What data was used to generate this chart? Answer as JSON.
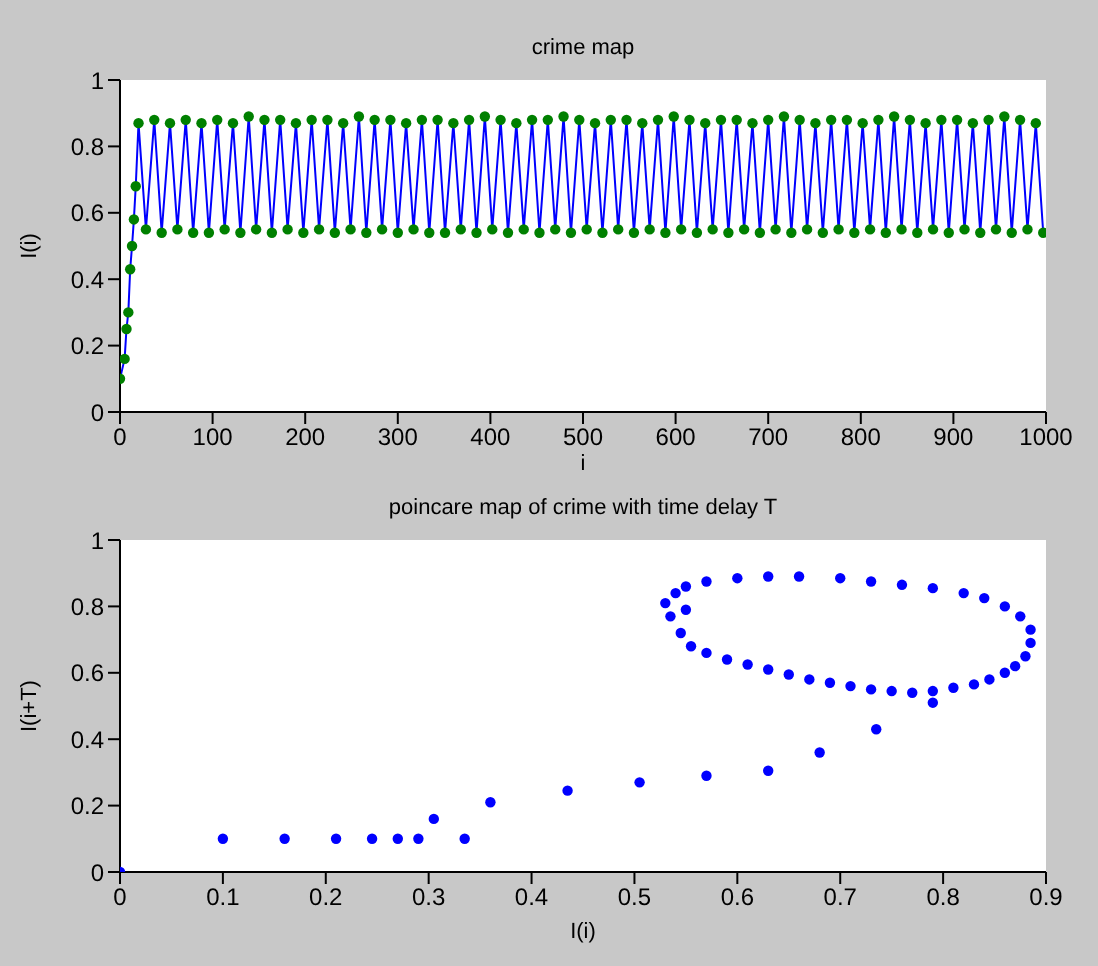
{
  "chart_data": [
    {
      "type": "line",
      "title": "crime map",
      "xlabel": "i",
      "ylabel": "I(i)",
      "xlim": [
        0,
        1000
      ],
      "xticks": [
        0,
        100,
        200,
        300,
        400,
        500,
        600,
        700,
        800,
        900,
        1000
      ],
      "ylim": [
        0,
        1
      ],
      "yticks": [
        0,
        0.2,
        0.4,
        0.6,
        0.8,
        1
      ],
      "x": [
        0,
        5,
        7,
        9,
        11,
        13,
        15,
        17,
        20,
        28,
        37,
        45,
        54,
        62,
        71,
        79,
        88,
        96,
        105,
        113,
        122,
        130,
        139,
        147,
        156,
        164,
        173,
        181,
        190,
        198,
        207,
        215,
        224,
        232,
        241,
        249,
        258,
        266,
        275,
        283,
        292,
        300,
        309,
        317,
        326,
        334,
        343,
        351,
        360,
        368,
        377,
        385,
        394,
        402,
        411,
        419,
        428,
        436,
        445,
        453,
        462,
        470,
        479,
        487,
        496,
        504,
        513,
        521,
        530,
        538,
        547,
        555,
        564,
        572,
        581,
        589,
        598,
        606,
        615,
        623,
        632,
        640,
        649,
        657,
        666,
        674,
        683,
        691,
        700,
        708,
        717,
        725,
        734,
        742,
        751,
        759,
        768,
        776,
        785,
        793,
        802,
        810,
        819,
        827,
        836,
        844,
        853,
        861,
        870,
        878,
        887,
        895,
        904,
        912,
        921,
        929,
        938,
        946,
        955,
        963,
        972,
        980,
        989,
        997
      ],
      "series": [
        {
          "color": "#0000ff",
          "marker": "none",
          "values": [
            0.1,
            0.16,
            0.25,
            0.3,
            0.43,
            0.5,
            0.58,
            0.68,
            0.87,
            0.55,
            0.88,
            0.54,
            0.87,
            0.55,
            0.88,
            0.54,
            0.87,
            0.54,
            0.88,
            0.55,
            0.87,
            0.54,
            0.89,
            0.55,
            0.88,
            0.54,
            0.88,
            0.55,
            0.87,
            0.54,
            0.88,
            0.55,
            0.88,
            0.54,
            0.87,
            0.55,
            0.89,
            0.54,
            0.88,
            0.55,
            0.88,
            0.54,
            0.87,
            0.55,
            0.88,
            0.54,
            0.88,
            0.54,
            0.87,
            0.55,
            0.88,
            0.54,
            0.89,
            0.55,
            0.88,
            0.54,
            0.87,
            0.55,
            0.88,
            0.54,
            0.88,
            0.55,
            0.89,
            0.54,
            0.88,
            0.55,
            0.87,
            0.54,
            0.88,
            0.55,
            0.88,
            0.54,
            0.87,
            0.55,
            0.88,
            0.54,
            0.89,
            0.55,
            0.88,
            0.54,
            0.87,
            0.55,
            0.88,
            0.54,
            0.88,
            0.55,
            0.87,
            0.54,
            0.88,
            0.55,
            0.89,
            0.54,
            0.88,
            0.55,
            0.87,
            0.54,
            0.88,
            0.55,
            0.88,
            0.54,
            0.87,
            0.55,
            0.88,
            0.54,
            0.89,
            0.55,
            0.88,
            0.54,
            0.87,
            0.55,
            0.88,
            0.54,
            0.88,
            0.55,
            0.87,
            0.54,
            0.88,
            0.55,
            0.89,
            0.54,
            0.88,
            0.55,
            0.87,
            0.54
          ]
        },
        {
          "type": "scatter",
          "color": "#008000",
          "marker": "circle",
          "values": [
            0.1,
            0.16,
            0.25,
            0.3,
            0.43,
            0.5,
            0.58,
            0.68,
            0.87,
            0.55,
            0.88,
            0.54,
            0.87,
            0.55,
            0.88,
            0.54,
            0.87,
            0.54,
            0.88,
            0.55,
            0.87,
            0.54,
            0.89,
            0.55,
            0.88,
            0.54,
            0.88,
            0.55,
            0.87,
            0.54,
            0.88,
            0.55,
            0.88,
            0.54,
            0.87,
            0.55,
            0.89,
            0.54,
            0.88,
            0.55,
            0.88,
            0.54,
            0.87,
            0.55,
            0.88,
            0.54,
            0.88,
            0.54,
            0.87,
            0.55,
            0.88,
            0.54,
            0.89,
            0.55,
            0.88,
            0.54,
            0.87,
            0.55,
            0.88,
            0.54,
            0.88,
            0.55,
            0.89,
            0.54,
            0.88,
            0.55,
            0.87,
            0.54,
            0.88,
            0.55,
            0.88,
            0.54,
            0.87,
            0.55,
            0.88,
            0.54,
            0.89,
            0.55,
            0.88,
            0.54,
            0.87,
            0.55,
            0.88,
            0.54,
            0.88,
            0.55,
            0.87,
            0.54,
            0.88,
            0.55,
            0.89,
            0.54,
            0.88,
            0.55,
            0.87,
            0.54,
            0.88,
            0.55,
            0.88,
            0.54,
            0.87,
            0.55,
            0.88,
            0.54,
            0.89,
            0.55,
            0.88,
            0.54,
            0.87,
            0.55,
            0.88,
            0.54,
            0.88,
            0.55,
            0.87,
            0.54,
            0.88,
            0.55,
            0.89,
            0.54,
            0.88,
            0.55,
            0.87,
            0.54
          ]
        }
      ]
    },
    {
      "type": "scatter",
      "title": "poincare map of crime with time delay T",
      "xlabel": "I(i)",
      "ylabel": "I(i+T)",
      "xlim": [
        0,
        0.9
      ],
      "xticks": [
        0,
        0.1,
        0.2,
        0.3,
        0.4,
        0.5,
        0.6,
        0.7,
        0.8,
        0.9
      ],
      "ylim": [
        0,
        1
      ],
      "yticks": [
        0,
        0.2,
        0.4,
        0.6,
        0.8,
        1
      ],
      "marker": "circle",
      "x": [
        0,
        0.1,
        0.16,
        0.21,
        0.245,
        0.27,
        0.29,
        0.305,
        0.335,
        0.36,
        0.435,
        0.505,
        0.57,
        0.63,
        0.68,
        0.735,
        0.79,
        0.53,
        0.535,
        0.54,
        0.55,
        0.57,
        0.6,
        0.63,
        0.66,
        0.7,
        0.73,
        0.76,
        0.79,
        0.82,
        0.84,
        0.86,
        0.875,
        0.885,
        0.885,
        0.88,
        0.87,
        0.86,
        0.845,
        0.83,
        0.81,
        0.79,
        0.77,
        0.75,
        0.73,
        0.71,
        0.69,
        0.67,
        0.65,
        0.63,
        0.61,
        0.59,
        0.57,
        0.555,
        0.545,
        0.55
      ],
      "series": [
        {
          "color": "#0000ff",
          "values": [
            0,
            0.1,
            0.1,
            0.1,
            0.1,
            0.1,
            0.1,
            0.16,
            0.1,
            0.21,
            0.245,
            0.27,
            0.29,
            0.305,
            0.36,
            0.43,
            0.51,
            0.81,
            0.77,
            0.84,
            0.86,
            0.875,
            0.885,
            0.89,
            0.89,
            0.885,
            0.875,
            0.865,
            0.855,
            0.84,
            0.825,
            0.8,
            0.77,
            0.73,
            0.69,
            0.65,
            0.62,
            0.6,
            0.58,
            0.565,
            0.555,
            0.545,
            0.54,
            0.545,
            0.55,
            0.56,
            0.57,
            0.58,
            0.595,
            0.61,
            0.625,
            0.64,
            0.66,
            0.68,
            0.72,
            0.79
          ]
        }
      ]
    }
  ]
}
